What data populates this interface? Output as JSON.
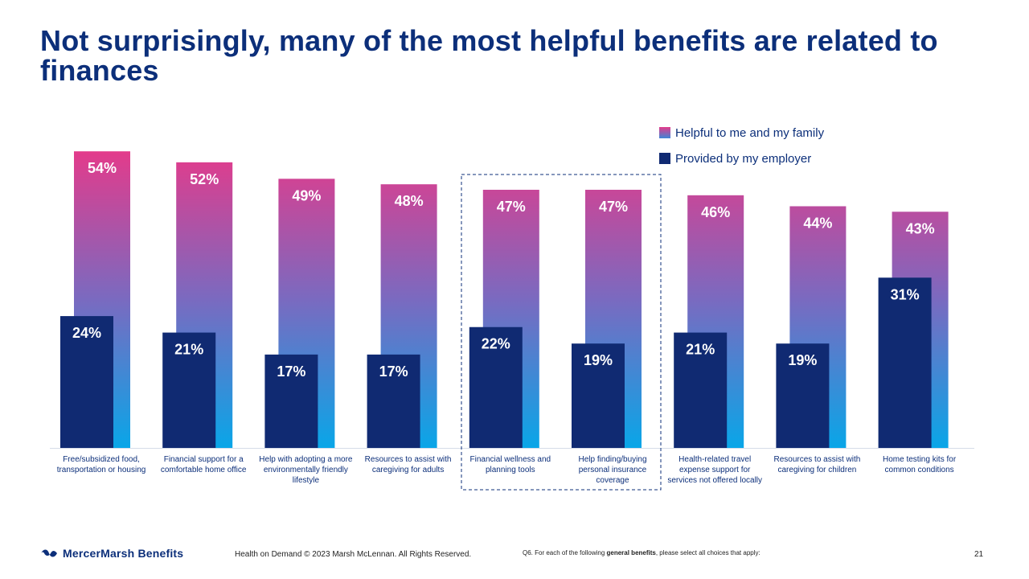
{
  "slide": {
    "title": "Not surprisingly, many of the most helpful benefits are related to finances",
    "page_number": "21"
  },
  "legend": {
    "helpful": "Helpful to me and my family",
    "employer": "Provided by my employer"
  },
  "footer": {
    "logo_text": "MercerMarsh Benefits",
    "copyright": "Health on Demand © 2023 Marsh McLennan. All Rights Reserved.",
    "question_prefix": "Q6. For each of the following ",
    "question_bold": "general benefits",
    "question_suffix": ", please select all choices that apply:"
  },
  "colors": {
    "title": "#0c2f7a",
    "employer_bar": "#102a72",
    "helpful_gradient_top": "#e33b8b",
    "helpful_gradient_mid": "#7a6ac0",
    "helpful_gradient_bottom": "#09a6e8",
    "highlight_box": "#0c2f7a"
  },
  "chart_data": {
    "type": "bar",
    "categories": [
      "Free/subsidized food, transportation or housing",
      "Financial support for a comfortable home office",
      "Help with adopting a more environmentally friendly lifestyle",
      "Resources to assist with caregiving for adults",
      "Financial wellness and planning tools",
      "Help finding/buying personal insurance coverage",
      "Health-related travel expense support for services not offered locally",
      "Resources to assist with caregiving for children",
      "Home testing kits for common conditions"
    ],
    "category_lines": [
      [
        "Free/subsidized food,",
        "transportation or housing"
      ],
      [
        "Financial support for a",
        "comfortable home office"
      ],
      [
        "Help with adopting a more",
        "environmentally friendly",
        "lifestyle"
      ],
      [
        "Resources to assist with",
        "caregiving for adults"
      ],
      [
        "Financial wellness and",
        "planning tools"
      ],
      [
        "Help finding/buying",
        "personal insurance",
        "coverage"
      ],
      [
        "Health-related travel",
        "expense support for",
        "services not offered locally"
      ],
      [
        "Resources to assist with",
        "caregiving for children"
      ],
      [
        "Home testing kits for",
        "common conditions"
      ]
    ],
    "series": [
      {
        "name": "Helpful to me and my family",
        "values": [
          54,
          52,
          49,
          48,
          47,
          47,
          46,
          44,
          43
        ],
        "labels": [
          "54%",
          "52%",
          "49%",
          "48%",
          "47%",
          "47%",
          "46%",
          "44%",
          "43%"
        ]
      },
      {
        "name": "Provided by my employer",
        "values": [
          24,
          21,
          17,
          17,
          22,
          19,
          21,
          19,
          31
        ],
        "labels": [
          "24%",
          "21%",
          "17%",
          "17%",
          "22%",
          "19%",
          "21%",
          "19%",
          "31%"
        ]
      }
    ],
    "ylim": [
      0,
      100
    ],
    "highlighted_categories": [
      4,
      5
    ],
    "legend_position": "top-right",
    "grid": false
  }
}
